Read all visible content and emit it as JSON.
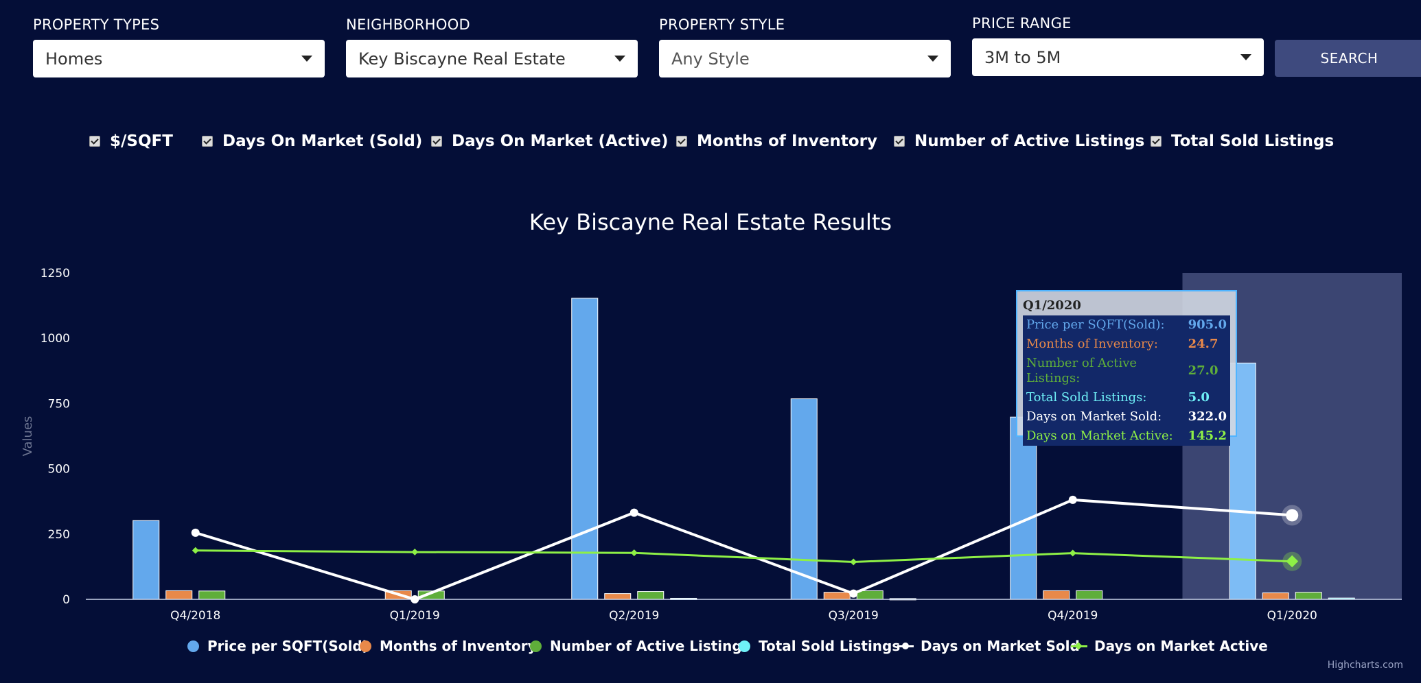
{
  "filters": {
    "property_types": {
      "label": "PROPERTY TYPES",
      "value": "Homes"
    },
    "neighborhood": {
      "label": "NEIGHBORHOOD",
      "value": "Key Biscayne Real Estate"
    },
    "property_style": {
      "label": "PROPERTY STYLE",
      "value": "Any Style"
    },
    "price_range": {
      "label": "PRICE RANGE",
      "value": "3M to 5M"
    },
    "search_label": "SEARCH"
  },
  "checkboxes": [
    {
      "label": "$/SQFT",
      "checked": true
    },
    {
      "label": "Days On Market (Sold)",
      "checked": true
    },
    {
      "label": "Days On Market (Active)",
      "checked": true
    },
    {
      "label": "Months of Inventory",
      "checked": true
    },
    {
      "label": "Number of Active Listings",
      "checked": true
    },
    {
      "label": "Total Sold Listings",
      "checked": true
    }
  ],
  "tooltip": {
    "header": "Q1/2020",
    "rows": [
      {
        "label": "Price per SQFT(Sold):",
        "value": "905.0",
        "color": "#63a8ec"
      },
      {
        "label": "Months of Inventory:",
        "value": "24.7",
        "color": "#e8894a"
      },
      {
        "label": "Number of Active Listings:",
        "value": "27.0",
        "color": "#5fae3a"
      },
      {
        "label": "Total Sold Listings:",
        "value": "5.0",
        "color": "#6ff0f7"
      },
      {
        "label": "Days on Market Sold:",
        "value": "322.0",
        "color": "#ffffff"
      },
      {
        "label": "Days on Market Active:",
        "value": "145.2",
        "color": "#8ef046"
      }
    ]
  },
  "credits": "Highcharts.com",
  "chart_data": {
    "type": "bar",
    "title": "Key Biscayne Real Estate Results",
    "ylabel": "Values",
    "ylim": [
      0,
      1250
    ],
    "yticks": [
      0,
      250,
      500,
      750,
      1000,
      1250
    ],
    "categories": [
      "Q4/2018",
      "Q1/2019",
      "Q2/2019",
      "Q3/2019",
      "Q4/2019",
      "Q1/2020"
    ],
    "highlighted_category": "Q1/2020",
    "series": [
      {
        "name": "Price per SQFT(Sold)",
        "type": "column",
        "color": "#63a8ec",
        "values": [
          302,
          null,
          1153,
          768,
          698,
          905
        ]
      },
      {
        "name": "Months of Inventory",
        "type": "column",
        "color": "#e8894a",
        "values": [
          33,
          33,
          22,
          27,
          33,
          24.7
        ]
      },
      {
        "name": "Number of Active Listings",
        "type": "column",
        "color": "#5fae3a",
        "values": [
          32,
          32,
          30,
          33,
          33,
          27
        ]
      },
      {
        "name": "Total Sold Listings",
        "type": "column",
        "color": "#6ff0f7",
        "values": [
          0,
          0,
          4,
          3,
          0,
          5
        ]
      },
      {
        "name": "Days on Market Sold",
        "type": "line",
        "color": "#ffffff",
        "values": [
          255,
          0,
          332,
          22,
          381,
          322
        ]
      },
      {
        "name": "Days on Market Active",
        "type": "line",
        "color": "#8ef046",
        "values": [
          187,
          181,
          178,
          143,
          177,
          145.2
        ]
      }
    ],
    "legend_position": "bottom-center"
  }
}
